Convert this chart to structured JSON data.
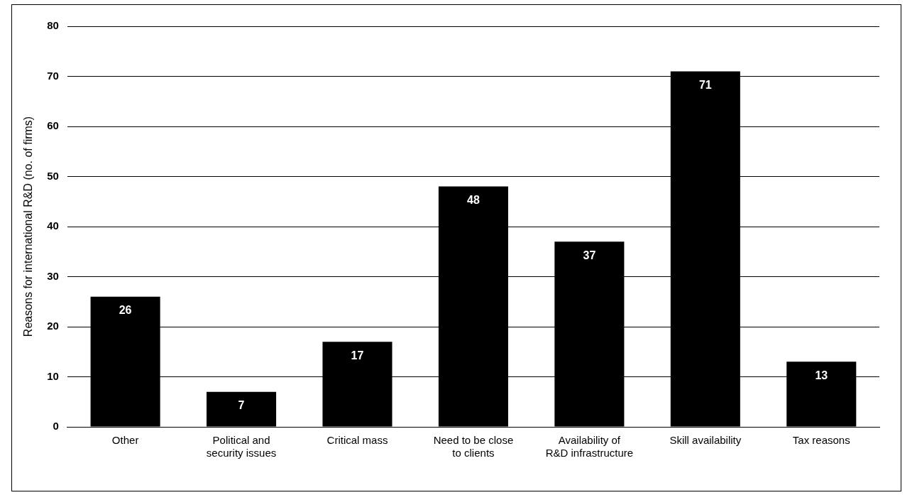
{
  "chart_data": {
    "type": "bar",
    "ylabel": "Reasons for international R&D (no. of firms)",
    "categories": [
      "Other",
      "Political and security issues",
      "Critical mass",
      "Need to be close to clients",
      "Availability of R&D infrastructure",
      "Skill availability",
      "Tax reasons"
    ],
    "values": [
      26,
      7,
      17,
      48,
      37,
      71,
      13
    ],
    "color": "#000000",
    "ylim": [
      0,
      80
    ],
    "yticks": [
      0,
      10,
      20,
      30,
      40,
      50,
      60,
      70,
      80
    ],
    "grid": "y",
    "legend": false,
    "data_labels": true
  }
}
